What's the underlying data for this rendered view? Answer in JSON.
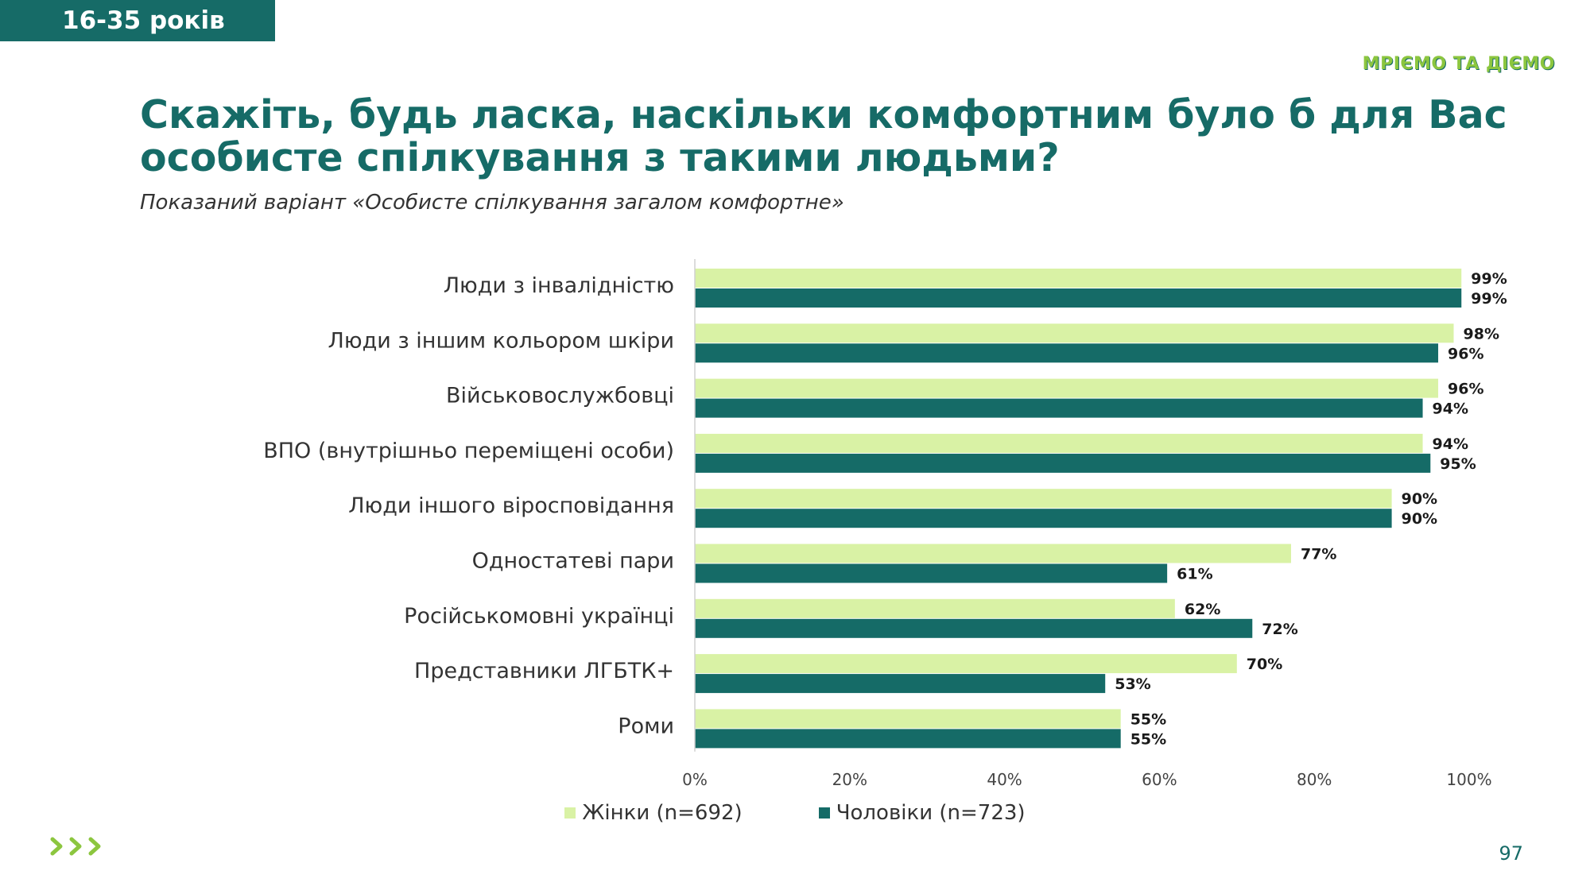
{
  "header": {
    "age_badge": "16-35 років",
    "brand": "МРІЄМО ТА ДІЄМО",
    "title": "Скажіть, будь ласка, наскільки комфортним було б для Вас\nособисте спілкування з такими людьми?",
    "subtitle": "Показаний варіант «Особисте спілкування загалом комфортне»"
  },
  "colors": {
    "women": "#d9f2a5",
    "men": "#156b67",
    "accent": "#166b67",
    "brand_green": "#8cc63f"
  },
  "chart_data": {
    "type": "bar",
    "orientation": "horizontal",
    "categories": [
      "Люди з інвалідністю",
      "Люди з іншим кольором шкіри",
      "Військовослужбовці",
      "ВПО (внутрішньо переміщені особи)",
      "Люди іншого віросповідання",
      "Одностатеві пари",
      "Російськомовні українці",
      "Представники ЛГБТК+",
      "Роми"
    ],
    "series": [
      {
        "name": "Жінки (n=692)",
        "values": [
          99,
          98,
          96,
          94,
          90,
          77,
          62,
          70,
          55
        ]
      },
      {
        "name": "Чоловіки (n=723)",
        "values": [
          99,
          96,
          94,
          95,
          90,
          61,
          72,
          53,
          55
        ]
      }
    ],
    "value_suffix": "%",
    "xlim": [
      0,
      100
    ],
    "xticks": [
      0,
      20,
      40,
      60,
      80,
      100
    ],
    "xtick_labels": [
      "0%",
      "20%",
      "40%",
      "60%",
      "80%",
      "100%"
    ],
    "legend_position": "bottom-center",
    "grid": false
  },
  "footer": {
    "nav_icon": "chevron-triple-right-icon",
    "page_number": "97"
  }
}
